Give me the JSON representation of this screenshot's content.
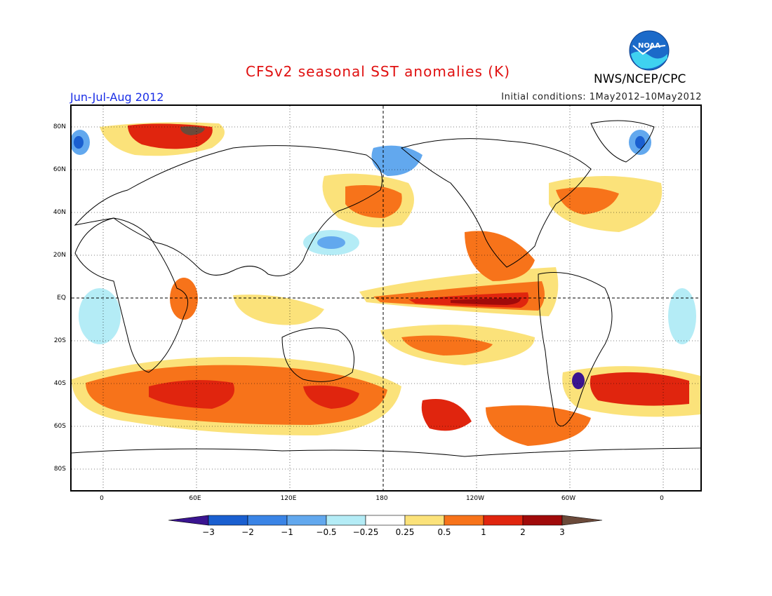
{
  "title": "CFSv2 seasonal SST anomalies (K)",
  "agency": "NWS/NCEP/CPC",
  "logo_text": "NOAA",
  "season": "Jun-Jul-Aug 2012",
  "initial_conditions": "Initial conditions: 1May2012–10May2012",
  "lat_labels": [
    "80N",
    "60N",
    "40N",
    "20N",
    "EQ",
    "20S",
    "40S",
    "60S",
    "80S"
  ],
  "lon_labels": [
    "0",
    "60E",
    "120E",
    "180",
    "120W",
    "60W",
    "0"
  ],
  "colorbar": {
    "labels": [
      "−3",
      "−2",
      "−1",
      "−0.5",
      "−0.25",
      "0.25",
      "0.5",
      "1",
      "2",
      "3"
    ],
    "colors": [
      "#3a1490",
      "#1a5fd0",
      "#3a84e6",
      "#62a8ee",
      "#b4ecf6",
      "#ffffff",
      "#fbe27a",
      "#f7731a",
      "#e0250e",
      "#a00a0a",
      "#6b4a3a"
    ]
  }
}
